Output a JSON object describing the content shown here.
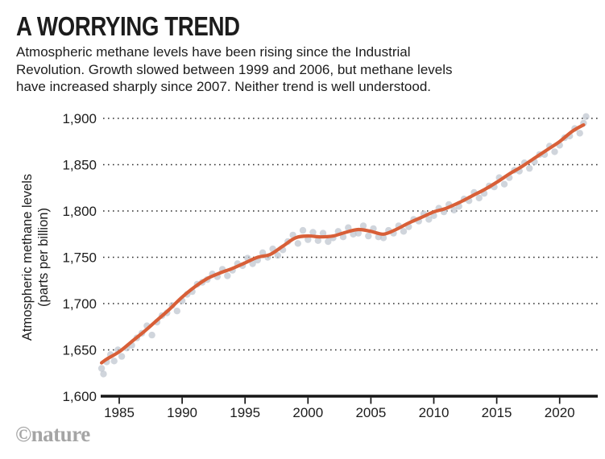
{
  "header": {
    "title": "A WORRYING TREND",
    "subtitle_lines": [
      "Atmospheric methane levels have been rising since the Industrial",
      "Revolution. Growth slowed between 1999 and 2006, but methane levels",
      "have increased sharply since 2007. Neither trend is well understood."
    ]
  },
  "footer": {
    "credit": "©nature"
  },
  "chart_data": {
    "type": "scatter",
    "title": "A WORRYING TREND",
    "xlabel": "",
    "ylabel_line1": "Atmospheric methane levels",
    "ylabel_line2": "(parts per billion)",
    "xlim": [
      1983.4,
      2022.9
    ],
    "ylim": [
      1600,
      1900
    ],
    "grid": "horizontal-dotted",
    "legend": "none",
    "x_ticks": [
      1985,
      1990,
      1995,
      2000,
      2005,
      2010,
      2015,
      2020
    ],
    "y_ticks": [
      {
        "value": 1600,
        "label": "1,600"
      },
      {
        "value": 1650,
        "label": "1,650"
      },
      {
        "value": 1700,
        "label": "1,700"
      },
      {
        "value": 1750,
        "label": "1,750"
      },
      {
        "value": 1800,
        "label": "1,800"
      },
      {
        "value": 1850,
        "label": "1,850"
      },
      {
        "value": 1900,
        "label": "1,900"
      }
    ],
    "colors": {
      "trend": "#d85f38",
      "points": "#bec5ce",
      "axis": "#161616",
      "grid": "#2e2e2e"
    },
    "trend": {
      "name": "smoothed-trend",
      "points": [
        [
          1983.6,
          1636
        ],
        [
          1984,
          1640
        ],
        [
          1985,
          1648
        ],
        [
          1986,
          1659
        ],
        [
          1987,
          1670
        ],
        [
          1988,
          1682
        ],
        [
          1989,
          1694
        ],
        [
          1990,
          1707
        ],
        [
          1991,
          1718
        ],
        [
          1992,
          1727
        ],
        [
          1993,
          1733
        ],
        [
          1994,
          1738
        ],
        [
          1995,
          1744
        ],
        [
          1996,
          1750
        ],
        [
          1997,
          1753
        ],
        [
          1998,
          1762
        ],
        [
          1999,
          1771
        ],
        [
          2000,
          1773
        ],
        [
          2001,
          1772
        ],
        [
          2002,
          1773
        ],
        [
          2003,
          1777
        ],
        [
          2004,
          1780
        ],
        [
          2005,
          1778
        ],
        [
          2006,
          1775
        ],
        [
          2007,
          1780
        ],
        [
          2008,
          1787
        ],
        [
          2009,
          1793
        ],
        [
          2010,
          1799
        ],
        [
          2011,
          1803
        ],
        [
          2012,
          1809
        ],
        [
          2013,
          1816
        ],
        [
          2014,
          1823
        ],
        [
          2015,
          1831
        ],
        [
          2016,
          1840
        ],
        [
          2017,
          1848
        ],
        [
          2018,
          1857
        ],
        [
          2019,
          1866
        ],
        [
          2020,
          1875
        ],
        [
          2021,
          1886
        ],
        [
          2021.9,
          1893
        ]
      ]
    },
    "observations": {
      "name": "observed-values",
      "points": [
        [
          1983.6,
          1630
        ],
        [
          1983.75,
          1624
        ],
        [
          1984.0,
          1637
        ],
        [
          1984.3,
          1645
        ],
        [
          1984.6,
          1638
        ],
        [
          1984.9,
          1650
        ],
        [
          1985.2,
          1643
        ],
        [
          1985.6,
          1652
        ],
        [
          1986.0,
          1655
        ],
        [
          1986.4,
          1663
        ],
        [
          1986.8,
          1668
        ],
        [
          1987.2,
          1676
        ],
        [
          1987.6,
          1666
        ],
        [
          1988.0,
          1680
        ],
        [
          1988.4,
          1687
        ],
        [
          1988.8,
          1690
        ],
        [
          1989.2,
          1698
        ],
        [
          1989.6,
          1692
        ],
        [
          1990.0,
          1703
        ],
        [
          1990.4,
          1710
        ],
        [
          1990.8,
          1713
        ],
        [
          1991.2,
          1721
        ],
        [
          1991.6,
          1723
        ],
        [
          1992.0,
          1726
        ],
        [
          1992.4,
          1732
        ],
        [
          1992.8,
          1729
        ],
        [
          1993.2,
          1737
        ],
        [
          1993.6,
          1730
        ],
        [
          1994.0,
          1736
        ],
        [
          1994.4,
          1743
        ],
        [
          1994.8,
          1741
        ],
        [
          1995.2,
          1749
        ],
        [
          1995.6,
          1743
        ],
        [
          1996.0,
          1747
        ],
        [
          1996.4,
          1755
        ],
        [
          1996.8,
          1750
        ],
        [
          1997.2,
          1759
        ],
        [
          1997.6,
          1752
        ],
        [
          1998.0,
          1758
        ],
        [
          1998.4,
          1767
        ],
        [
          1998.8,
          1774
        ],
        [
          1999.2,
          1765
        ],
        [
          1999.6,
          1779
        ],
        [
          2000.0,
          1769
        ],
        [
          2000.4,
          1777
        ],
        [
          2000.8,
          1768
        ],
        [
          2001.2,
          1776
        ],
        [
          2001.6,
          1767
        ],
        [
          2002.0,
          1771
        ],
        [
          2002.4,
          1778
        ],
        [
          2002.8,
          1772
        ],
        [
          2003.2,
          1782
        ],
        [
          2003.6,
          1775
        ],
        [
          2004.0,
          1776
        ],
        [
          2004.4,
          1784
        ],
        [
          2004.8,
          1773
        ],
        [
          2005.2,
          1781
        ],
        [
          2005.6,
          1772
        ],
        [
          2006.0,
          1771
        ],
        [
          2006.4,
          1779
        ],
        [
          2006.8,
          1776
        ],
        [
          2007.2,
          1784
        ],
        [
          2007.6,
          1778
        ],
        [
          2008.0,
          1783
        ],
        [
          2008.4,
          1791
        ],
        [
          2008.8,
          1789
        ],
        [
          2009.2,
          1797
        ],
        [
          2009.6,
          1791
        ],
        [
          2010.0,
          1795
        ],
        [
          2010.4,
          1803
        ],
        [
          2010.8,
          1799
        ],
        [
          2011.2,
          1807
        ],
        [
          2011.6,
          1801
        ],
        [
          2012.0,
          1805
        ],
        [
          2012.4,
          1813
        ],
        [
          2012.8,
          1811
        ],
        [
          2013.2,
          1820
        ],
        [
          2013.6,
          1814
        ],
        [
          2014.0,
          1819
        ],
        [
          2014.4,
          1827
        ],
        [
          2014.8,
          1826
        ],
        [
          2015.2,
          1836
        ],
        [
          2015.6,
          1829
        ],
        [
          2016.0,
          1836
        ],
        [
          2016.4,
          1844
        ],
        [
          2016.8,
          1843
        ],
        [
          2017.2,
          1852
        ],
        [
          2017.6,
          1846
        ],
        [
          2018.0,
          1853
        ],
        [
          2018.4,
          1861
        ],
        [
          2018.8,
          1861
        ],
        [
          2019.2,
          1870
        ],
        [
          2019.6,
          1864
        ],
        [
          2020.0,
          1871
        ],
        [
          2020.4,
          1879
        ],
        [
          2020.8,
          1881
        ],
        [
          2021.2,
          1889
        ],
        [
          2021.6,
          1884
        ],
        [
          2021.9,
          1895
        ],
        [
          2022.1,
          1902
        ]
      ]
    }
  }
}
